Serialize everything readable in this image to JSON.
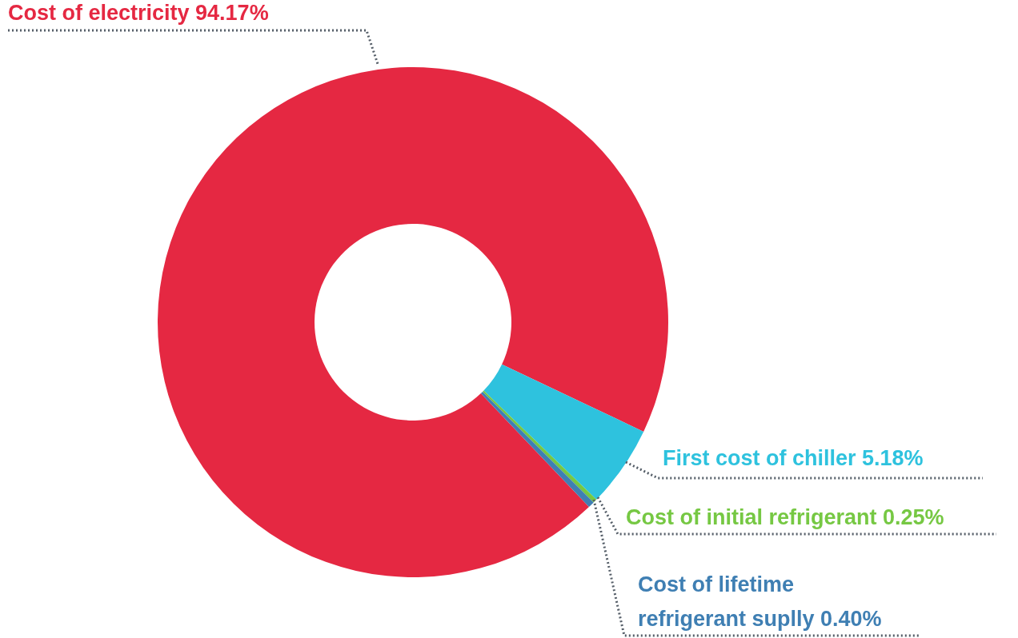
{
  "chart_data": {
    "type": "donut",
    "categories": [
      "Cost of electricity",
      "First cost of chiller",
      "Cost of initial refrigerant",
      "Cost of lifetime refrigerant suplly"
    ],
    "values": [
      94.17,
      5.18,
      0.25,
      0.4
    ],
    "value_labels": [
      "94.17%",
      "5.18%",
      "0.25%",
      "0.40%"
    ],
    "colors": [
      "#e52842",
      "#2ec2de",
      "#76c843",
      "#3f7fb3"
    ]
  }
}
